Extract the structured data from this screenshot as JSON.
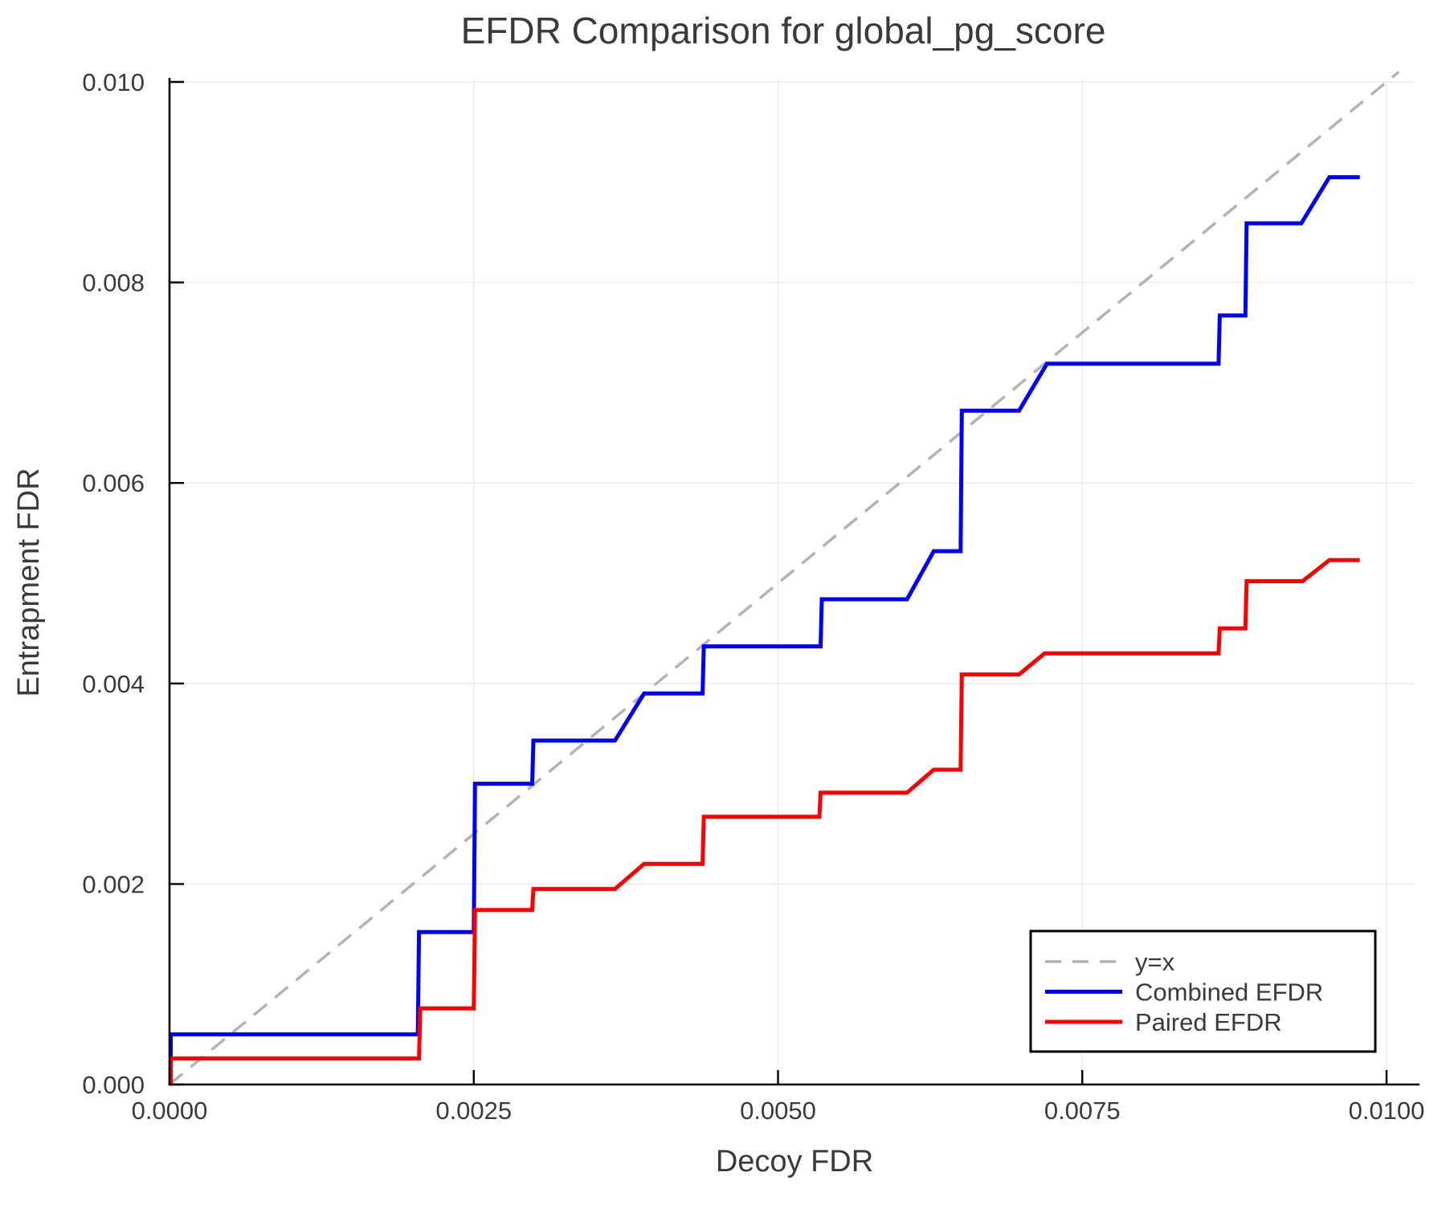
{
  "chart_data": {
    "type": "line",
    "title": "EFDR Comparison for global_pg_score",
    "xlabel": "Decoy FDR",
    "ylabel": "Entrapment FDR",
    "xlim": [
      0,
      0.0103
    ],
    "ylim": [
      0,
      0.0101
    ],
    "grid": true,
    "legend_position": "lower right",
    "x_ticks": {
      "values": [
        0,
        0.0025,
        0.005,
        0.0075,
        0.01
      ],
      "labels": [
        "0.0000",
        "0.0025",
        "0.0050",
        "0.0075",
        "0.0100"
      ]
    },
    "y_ticks": {
      "values": [
        0,
        0.002,
        0.004,
        0.006,
        0.008,
        0.01
      ],
      "labels": [
        "0.000",
        "0.002",
        "0.004",
        "0.006",
        "0.008",
        "0.010"
      ]
    },
    "series": [
      {
        "name": "y=x",
        "style": "dashed",
        "color": "#b3b3b3",
        "width": 3.5,
        "points": [
          [
            0,
            0
          ],
          [
            0.0101,
            0.0101
          ]
        ]
      },
      {
        "name": "Combined EFDR",
        "style": "solid",
        "color": "#0000ff",
        "width": 5,
        "points": [
          [
            1e-05,
            0
          ],
          [
            1e-05,
            0.0005
          ],
          [
            0.00204,
            0.0005
          ],
          [
            0.00205,
            0.00152
          ],
          [
            0.0025,
            0.00152
          ],
          [
            0.00251,
            0.003
          ],
          [
            0.00298,
            0.003
          ],
          [
            0.00299,
            0.00343
          ],
          [
            0.00366,
            0.00343
          ],
          [
            0.0039,
            0.0039
          ],
          [
            0.00438,
            0.0039
          ],
          [
            0.00439,
            0.00437
          ],
          [
            0.00535,
            0.00437
          ],
          [
            0.00536,
            0.00484
          ],
          [
            0.00606,
            0.00484
          ],
          [
            0.00628,
            0.00532
          ],
          [
            0.0065,
            0.00532
          ],
          [
            0.00651,
            0.00672
          ],
          [
            0.00698,
            0.00672
          ],
          [
            0.00721,
            0.00719
          ],
          [
            0.00862,
            0.00719
          ],
          [
            0.00863,
            0.00767
          ],
          [
            0.00884,
            0.00767
          ],
          [
            0.00885,
            0.00859
          ],
          [
            0.0093,
            0.00859
          ],
          [
            0.00953,
            0.00905
          ],
          [
            0.00978,
            0.00905
          ]
        ]
      },
      {
        "name": "Paired EFDR",
        "style": "solid",
        "color": "#ff0000",
        "width": 5,
        "points": [
          [
            1e-05,
            0
          ],
          [
            1e-05,
            0.00026
          ],
          [
            0.00205,
            0.00026
          ],
          [
            0.00206,
            0.00076
          ],
          [
            0.0025,
            0.00076
          ],
          [
            0.00251,
            0.00174
          ],
          [
            0.00298,
            0.00174
          ],
          [
            0.00299,
            0.00195
          ],
          [
            0.00366,
            0.00195
          ],
          [
            0.0039,
            0.0022
          ],
          [
            0.00438,
            0.0022
          ],
          [
            0.00439,
            0.00267
          ],
          [
            0.00534,
            0.00267
          ],
          [
            0.00535,
            0.00291
          ],
          [
            0.00606,
            0.00291
          ],
          [
            0.00628,
            0.00314
          ],
          [
            0.0065,
            0.00314
          ],
          [
            0.00651,
            0.00409
          ],
          [
            0.00698,
            0.00409
          ],
          [
            0.00719,
            0.0043
          ],
          [
            0.00862,
            0.0043
          ],
          [
            0.00863,
            0.00455
          ],
          [
            0.00884,
            0.00455
          ],
          [
            0.00885,
            0.00502
          ],
          [
            0.00931,
            0.00502
          ],
          [
            0.00953,
            0.00523
          ],
          [
            0.00978,
            0.00523
          ]
        ]
      }
    ],
    "style_colors": {
      "gridline": "#ececec",
      "spine": "#000000",
      "text": "#3a3a3a",
      "legend_border": "#000000",
      "background": "#ffffff"
    }
  }
}
